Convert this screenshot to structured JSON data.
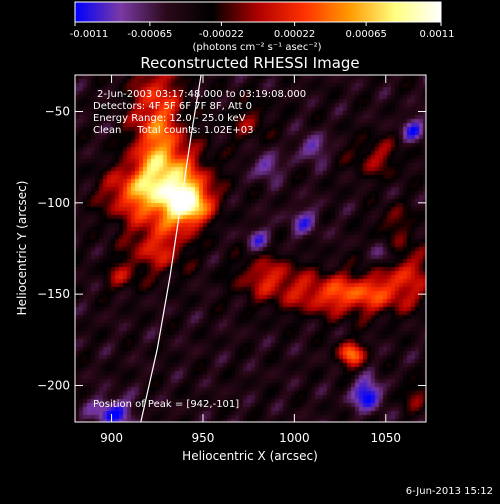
{
  "colorbar": {
    "tick_labels": [
      "-0.0011",
      "-0.00065",
      "-0.00022",
      "0.00022",
      "0.00065",
      "0.0011"
    ],
    "tick_values": [
      -0.0011,
      -0.00065,
      -0.00022,
      0.00022,
      0.00065,
      0.0011
    ],
    "range": [
      -0.0011,
      0.0011
    ],
    "unit_label": "(photons cm⁻² s⁻¹ asec⁻²)",
    "colors": [
      "#0000ff",
      "#7a3aa3",
      "#2a0818",
      "#000000",
      "#b00000",
      "#ff3000",
      "#ff9a00",
      "#ffff80",
      "#ffffff"
    ]
  },
  "chart_data": {
    "type": "heatmap",
    "title": "Reconstructed RHESSI Image",
    "xlabel": "Heliocentric X (arcsec)",
    "ylabel": "Heliocentric Y (arcsec)",
    "xlim": [
      880,
      1072
    ],
    "ylim": [
      -220,
      -30
    ],
    "x_ticks": [
      900,
      950,
      1000,
      1050
    ],
    "x_tick_labels": [
      "900",
      "950",
      "1000",
      "1050"
    ],
    "y_ticks": [
      -50,
      -100,
      -150,
      -200
    ],
    "y_tick_labels": [
      "−50",
      "−100",
      "−150",
      "−200"
    ],
    "annotations": [
      "2-Jun-2003 03:17:48.000 to 03:19:08.000",
      "Detectors: 4F 5F 6F 7F 8F, Att 0",
      "Energy Range: 12.0 - 25.0 keV",
      "Clean     Total counts: 1.02E+03"
    ],
    "peak_label": "Position of Peak = [942,-101]",
    "peak": [
      942,
      -101
    ],
    "limb": [
      [
        916,
        -220
      ],
      [
        925,
        -180
      ],
      [
        932,
        -140
      ],
      [
        938,
        -100
      ],
      [
        944,
        -60
      ],
      [
        949,
        -30
      ]
    ],
    "sources": [
      {
        "x": 942,
        "y": -101,
        "amp": 0.0011,
        "sx": 8,
        "sy": 8
      },
      {
        "x": 935,
        "y": -90,
        "amp": 0.0008,
        "sx": 14,
        "sy": 14
      },
      {
        "x": 925,
        "y": -60,
        "amp": 0.0008,
        "sx": 10,
        "sy": 30
      },
      {
        "x": 910,
        "y": -95,
        "amp": 0.0006,
        "sx": 12,
        "sy": 10
      },
      {
        "x": 925,
        "y": -125,
        "amp": 0.0005,
        "sx": 12,
        "sy": 10
      },
      {
        "x": 905,
        "y": -140,
        "amp": 0.0004,
        "sx": 6,
        "sy": 6
      },
      {
        "x": 1030,
        "y": -150,
        "amp": 0.0008,
        "sx": 25,
        "sy": 8
      },
      {
        "x": 1060,
        "y": -135,
        "amp": 0.0005,
        "sx": 10,
        "sy": 10
      },
      {
        "x": 985,
        "y": -140,
        "amp": 0.0005,
        "sx": 12,
        "sy": 8
      },
      {
        "x": 1031,
        "y": -183,
        "amp": 0.0009,
        "sx": 5,
        "sy": 5
      },
      {
        "x": 1045,
        "y": -75,
        "amp": 0.0004,
        "sx": 10,
        "sy": 8
      },
      {
        "x": 975,
        "y": -55,
        "amp": 0.00035,
        "sx": 8,
        "sy": 8
      },
      {
        "x": 1065,
        "y": -205,
        "amp": 0.00035,
        "sx": 6,
        "sy": 6
      },
      {
        "x": 1055,
        "y": -110,
        "amp": 0.0003,
        "sx": 8,
        "sy": 6
      },
      {
        "x": 1040,
        "y": -205,
        "amp": -0.0007,
        "sx": 6,
        "sy": 6
      },
      {
        "x": 900,
        "y": -215,
        "amp": -0.0006,
        "sx": 8,
        "sy": 6
      },
      {
        "x": 985,
        "y": -80,
        "amp": -0.0005,
        "sx": 5,
        "sy": 5
      },
      {
        "x": 1010,
        "y": -70,
        "amp": -0.0005,
        "sx": 5,
        "sy": 5
      },
      {
        "x": 1050,
        "y": -130,
        "amp": -0.0005,
        "sx": 5,
        "sy": 5
      },
      {
        "x": 980,
        "y": -120,
        "amp": -0.0004,
        "sx": 5,
        "sy": 5
      },
      {
        "x": 1065,
        "y": -60,
        "amp": -0.0005,
        "sx": 5,
        "sy": 5
      },
      {
        "x": 1005,
        "y": -110,
        "amp": -0.0004,
        "sx": 6,
        "sy": 6
      }
    ]
  },
  "timestamp": "6-Jun-2013 15:12"
}
